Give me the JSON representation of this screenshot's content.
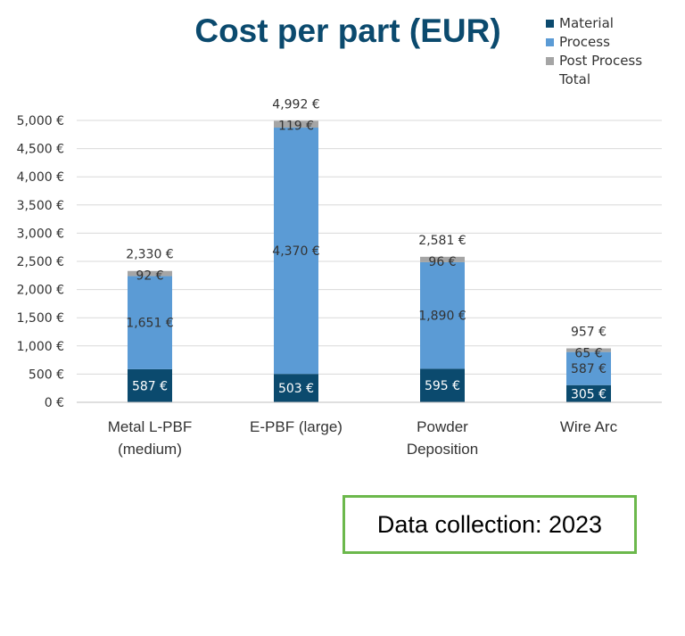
{
  "chart_data": {
    "type": "bar",
    "stacked": true,
    "title": "Cost per part (EUR)",
    "categories": [
      [
        "Metal L-PBF",
        "(medium)"
      ],
      [
        "E-PBF (large)"
      ],
      [
        "Powder",
        "Deposition"
      ],
      [
        "Wire Arc"
      ]
    ],
    "series": [
      {
        "name": "Material",
        "color": "#0b4a6e",
        "values": [
          587,
          503,
          595,
          305
        ],
        "labels": [
          "587 €",
          "503 €",
          "595 €",
          "305 €"
        ],
        "label_color": "#ffffff"
      },
      {
        "name": "Process",
        "color": "#5b9bd5",
        "values": [
          1651,
          4370,
          1890,
          587
        ],
        "labels": [
          "1,651 €",
          "4,370 €",
          "1,890 €",
          "587 €"
        ],
        "label_color": "#333333"
      },
      {
        "name": "Post Process",
        "color": "#a5a5a5",
        "values": [
          92,
          119,
          96,
          65
        ],
        "labels": [
          "92 €",
          "119 €",
          "96 €",
          "65 €"
        ],
        "label_color": "#333333"
      }
    ],
    "totals": {
      "name": "Total",
      "values": [
        2330,
        4992,
        2581,
        957
      ],
      "labels": [
        "2,330 €",
        "4,992 €",
        "2,581 €",
        "957 €"
      ]
    },
    "ylim": [
      0,
      5000
    ],
    "yticks": [
      0,
      500,
      1000,
      1500,
      2000,
      2500,
      3000,
      3500,
      4000,
      4500,
      5000
    ],
    "ytick_labels": [
      "0 €",
      "500 €",
      "1,000 €",
      "1,500 €",
      "2,000 €",
      "2,500 €",
      "3,000 €",
      "3,500 €",
      "4,000 €",
      "4,500 €",
      "5,000 €"
    ],
    "grid": true,
    "legend_position": "top-right"
  },
  "legend": {
    "material": "Material",
    "process": "Process",
    "post_process": "Post Process",
    "total": "Total"
  },
  "colors": {
    "material": "#0b4a6e",
    "process": "#5b9bd5",
    "post_process": "#a5a5a5",
    "title": "#0b4a6e",
    "note_border": "#6cb84c"
  },
  "note": "Data collection: 2023"
}
